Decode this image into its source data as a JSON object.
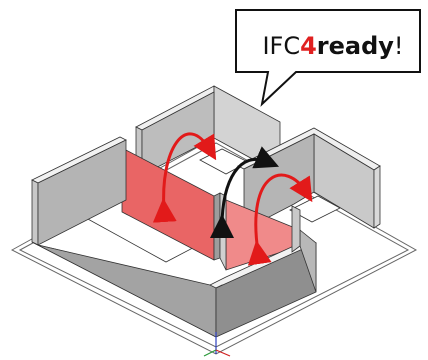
{
  "bubble": {
    "prefix": "IFC",
    "number": "4",
    "word": "ready",
    "suffix": "!"
  },
  "colors": {
    "wall_front": "#b9b9b9",
    "wall_side": "#9a9a9a",
    "wall_top": "#eeeeee",
    "wall_dark": "#7f7f7f",
    "highlight_wall": "#ea6b6b",
    "highlight_wall_side": "#e08a8a",
    "arrow_red": "#e21a1a",
    "arrow_black": "#111111",
    "bubble_stroke": "#111111",
    "floor_line": "#555555"
  },
  "icons": [
    "speech-bubble",
    "curved-double-arrow-red",
    "curved-double-arrow-black",
    "axis-gizmo"
  ]
}
